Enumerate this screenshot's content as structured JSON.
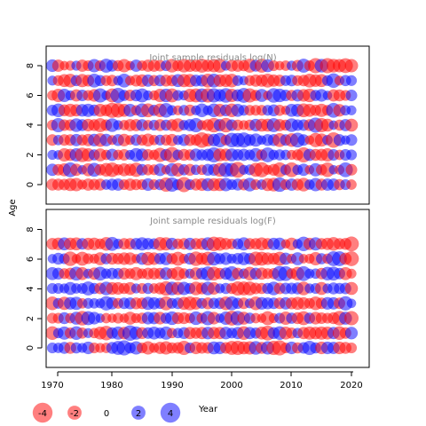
{
  "chart_data": [
    {
      "type": "scatter",
      "title": "Joint sample residuals log(N)",
      "xlabel": "Year",
      "ylabel": "Age",
      "xlim": [
        1970,
        2021
      ],
      "ylim": [
        -1,
        9
      ],
      "x_ticks": [
        1970,
        1980,
        1990,
        2000,
        2010,
        2020
      ],
      "y_ticks": [
        0,
        2,
        4,
        6,
        8
      ],
      "years": [
        1970,
        2020
      ],
      "ages": [
        0,
        8
      ],
      "grid": false,
      "colors": {
        "positive": "#0000ff",
        "negative": "#ff0000"
      },
      "rows": [
        [
          -1.6,
          -1.6,
          -1.5,
          -1.9,
          -2.0,
          -1.1,
          -1.7,
          -1.5,
          -1.6,
          1.2,
          1.6,
          1.7,
          -1.3,
          -1.7,
          -1.4,
          -1.3,
          1.8,
          -1.3,
          1.4,
          -2.3,
          2.3,
          1.4,
          -2.6,
          1.3,
          -1.6,
          -1.8,
          1.9,
          -1.9,
          -1.9,
          2.0,
          1.3,
          1.6,
          -1.5,
          2.1,
          -1.3,
          1.2,
          -1.9,
          -2.1,
          2.4,
          -1.3,
          1.7,
          -1.6,
          -2.1,
          1.2,
          2.0,
          -1.6,
          1.7,
          1.7,
          -1.4,
          1.3,
          -1.2
        ],
        [
          1.7,
          -1.5,
          -1.9,
          2.5,
          -1.7,
          1.0,
          -1.9,
          2.2,
          -1.5,
          -2.1,
          -2.4,
          -1.4,
          -1.9,
          -1.7,
          -2.3,
          1.5,
          -1.4,
          -1.3,
          1.8,
          -1.0,
          2.0,
          -2.1,
          1.4,
          -1.6,
          1.2,
          -1.2,
          1.6,
          1.6,
          -2.2,
          2.4,
          2.2,
          -2.8,
          1.1,
          1.3,
          -2.2,
          -2.6,
          -1.1,
          -1.6,
          -2.5,
          1.3,
          -2.5,
          1.2,
          1.7,
          -1.0,
          2.0,
          -1.4,
          -2.4,
          1.0,
          -1.1,
          2.5,
          -1.5
        ],
        [
          1.1,
          1.0,
          -2.0,
          -1.7,
          2.0,
          -2.4,
          -2.0,
          1.4,
          -1.9,
          -1.2,
          1.7,
          -1.2,
          -1.5,
          1.1,
          2.1,
          1.8,
          -1.5,
          -1.2,
          -2.3,
          1.6,
          -2.8,
          1.3,
          -1.6,
          -1.4,
          1.8,
          1.4,
          1.7,
          2.6,
          -1.9,
          -1.8,
          1.9,
          1.5,
          1.7,
          1.3,
          2.1,
          -1.4,
          2.5,
          1.2,
          1.4,
          1.2,
          -1.1,
          -1.4,
          -2.6,
          1.7,
          -1.6,
          -1.7,
          -2.0,
          1.5,
          -1.2,
          1.5,
          1.3
        ],
        [
          -1.5,
          1.2,
          -1.5,
          -1.5,
          1.7,
          -1.4,
          -1.7,
          1.8,
          -2.1,
          1.8,
          -1.1,
          1.6,
          -1.8,
          -1.1,
          1.5,
          -1.4,
          -1.9,
          -1.2,
          1.3,
          -1.4,
          -1.7,
          1.1,
          1.6,
          -1.6,
          -1.5,
          -2.7,
          -1.9,
          1.8,
          2.4,
          -1.3,
          2.4,
          2.3,
          2.6,
          1.6,
          2.0,
          1.0,
          1.6,
          1.6,
          -2.2,
          1.5,
          -2.1,
          2.5,
          1.5,
          -1.0,
          -2.3,
          -2.0,
          1.2,
          -2.7,
          1.6,
          1.0,
          1.5
        ],
        [
          -1.3,
          2.3,
          -1.5,
          -1.5,
          2.1,
          1.6,
          -1.8,
          -1.6,
          -2.2,
          -1.5,
          2.1,
          1.1,
          -1.2,
          -1.7,
          -1.7,
          1.6,
          -1.2,
          1.3,
          -1.6,
          1.4,
          -1.6,
          -2.1,
          1.2,
          1.7,
          2.3,
          -1.1,
          -1.6,
          -2.4,
          1.7,
          -2.4,
          1.5,
          -1.4,
          -1.1,
          -1.4,
          1.8,
          -1.9,
          -1.9,
          2.2,
          -1.7,
          -1.4,
          2.1,
          1.5,
          1.5,
          -1.6,
          2.6,
          -2.3,
          -1.9,
          1.0,
          -1.4,
          1.7,
          -1.9
        ],
        [
          1.4,
          2.1,
          -1.6,
          -2.0,
          -1.7,
          1.8,
          2.0,
          1.5,
          -1.9,
          -1.6,
          -2.6,
          -2.4,
          -1.9,
          1.9,
          -1.2,
          2.2,
          -2.2,
          1.4,
          -2.1,
          2.4,
          1.2,
          -1.1,
          1.3,
          -1.5,
          1.1,
          2.1,
          1.1,
          2.1,
          -1.9,
          1.6,
          -2.1,
          1.9,
          1.3,
          -1.3,
          -1.3,
          -1.3,
          1.3,
          1.6,
          -1.4,
          -1.0,
          1.9,
          1.9,
          -2.2,
          -1.9,
          -1.4,
          -2.0,
          -1.3,
          2.5,
          -1.8,
          1.2,
          1.1
        ],
        [
          -1.2,
          -2.0,
          2.0,
          1.1,
          -1.7,
          1.5,
          -1.3,
          -1.8,
          2.3,
          1.0,
          -2.2,
          2.6,
          1.4,
          -1.5,
          1.6,
          2.2,
          1.1,
          -1.1,
          -2.0,
          2.1,
          -2.2,
          1.3,
          1.1,
          -2.0,
          -2.2,
          2.2,
          -2.3,
          2.3,
          1.8,
          2.4,
          -2.0,
          1.7,
          2.5,
          -2.3,
          -1.4,
          1.9,
          -1.0,
          2.4,
          2.1,
          1.5,
          -1.4,
          1.7,
          -1.8,
          -2.1,
          1.4,
          1.8,
          1.0,
          -1.7,
          -1.6,
          -1.3,
          1.5
        ],
        [
          1.1,
          -1.3,
          -1.9,
          -2.1,
          1.4,
          -2.0,
          -1.6,
          2.2,
          1.4,
          -1.3,
          -1.5,
          1.1,
          2.2,
          -1.1,
          -1.6,
          -1.8,
          1.7,
          -1.4,
          1.5,
          -1.6,
          -1.5,
          1.9,
          -2.0,
          -2.0,
          1.6,
          1.6,
          -2.2,
          2.2,
          -1.8,
          -1.9,
          -2.1,
          1.3,
          1.0,
          -1.3,
          -1.7,
          -1.7,
          -2.2,
          -1.7,
          -1.6,
          1.3,
          1.5,
          -1.3,
          -1.5,
          -2.2,
          -1.8,
          -1.9,
          1.3,
          2.4,
          -1.1,
          1.4,
          1.3
        ],
        [
          1.8,
          -1.7,
          -1.0,
          -1.1,
          1.1,
          -1.7,
          -1.3,
          2.0,
          -1.3,
          2.2,
          1.6,
          -1.4,
          -2.0,
          -1.0,
          1.7,
          -1.2,
          -1.7,
          -1.7,
          -1.5,
          1.3,
          -2.1,
          -1.4,
          -2.1,
          -1.8,
          -1.7,
          -2.2,
          -1.7,
          -2.0,
          -2.2,
          1.1,
          -1.6,
          -1.7,
          -1.4,
          -2.2,
          1.6,
          -2.2,
          1.9,
          -1.3,
          -1.0,
          -1.2,
          1.1,
          -1.5,
          2.2,
          -1.3,
          -2.6,
          2.1,
          -2.6,
          -2.1,
          -2.0,
          -2.5,
          -2.0
        ]
      ]
    },
    {
      "type": "scatter",
      "title": "Joint sample residuals log(F)",
      "xlabel": "Year",
      "ylabel": "Age",
      "xlim": [
        1970,
        2021
      ],
      "ylim": [
        -1,
        9
      ],
      "x_ticks": [
        1970,
        1980,
        1990,
        2000,
        2010,
        2020
      ],
      "y_ticks": [
        0,
        2,
        4,
        6,
        8
      ],
      "years": [
        1970,
        2020
      ],
      "ages": [
        0,
        7
      ],
      "grid": false,
      "colors": {
        "positive": "#0000ff",
        "negative": "#ff0000"
      },
      "rows": [
        [
          1.3,
          1.2,
          1.6,
          -1.6,
          1.4,
          1.1,
          1.8,
          -1.3,
          -1.1,
          -1.2,
          1.6,
          2.2,
          2.6,
          1.4,
          2.0,
          -1.3,
          -2.0,
          -1.1,
          -1.7,
          -2.0,
          -1.4,
          -1.5,
          -2.3,
          1.3,
          -1.8,
          -1.5,
          -1.5,
          1.9,
          1.8,
          -1.5,
          -2.2,
          -2.3,
          -1.9,
          -2.0,
          2.1,
          -1.6,
          2.0,
          -2.3,
          -2.6,
          -1.3,
          1.8,
          -1.4,
          1.5,
          2.3,
          1.4,
          -1.8,
          1.8,
          1.7,
          -1.8,
          -1.6,
          -1.3
        ],
        [
          -2.1,
          1.2,
          2.0,
          -1.4,
          2.1,
          -1.4,
          1.1,
          -1.2,
          -1.9,
          -2.4,
          1.5,
          2.0,
          -1.8,
          2.7,
          2.0,
          -1.6,
          1.5,
          1.9,
          1.4,
          2.0,
          -1.2,
          1.2,
          1.6,
          -1.7,
          -1.5,
          -1.7,
          1.8,
          -1.7,
          -1.7,
          1.8,
          1.3,
          1.7,
          -2.1,
          1.7,
          1.4,
          -1.9,
          -2.5,
          1.6,
          2.1,
          -1.9,
          -1.4,
          1.2,
          -1.7,
          -2.0,
          -1.8,
          -2.0,
          -1.9,
          1.7,
          -2.1,
          -1.5,
          1.8
        ],
        [
          -1.3,
          -1.3,
          1.6,
          -1.2,
          1.9,
          -2.4,
          2.2,
          1.8,
          1.0,
          -1.2,
          -1.0,
          -1.3,
          -1.0,
          -1.9,
          -1.1,
          -1.4,
          1.8,
          1.7,
          -1.8,
          1.4,
          2.1,
          -1.6,
          -1.6,
          -1.2,
          2.1,
          -1.3,
          2.3,
          -1.8,
          1.0,
          2.0,
          -2.5,
          2.4,
          -1.9,
          1.4,
          -1.2,
          -1.0,
          -2.2,
          -1.1,
          1.3,
          -2.0,
          1.4,
          -1.6,
          -2.2,
          1.4,
          -1.8,
          -1.5,
          -1.3,
          -1.6,
          -2.4,
          1.9,
          -2.3
        ],
        [
          -2.1,
          1.3,
          -2.0,
          1.8,
          2.0,
          -1.2,
          1.3,
          1.2,
          1.1,
          2.3,
          1.7,
          -1.3,
          1.5,
          1.6,
          -1.6,
          -1.5,
          2.0,
          1.7,
          1.4,
          -2.2,
          1.3,
          1.5,
          -1.9,
          -2.2,
          -1.8,
          1.3,
          -1.6,
          1.4,
          1.5,
          -2.1,
          2.2,
          1.4,
          -1.5,
          1.1,
          -2.1,
          1.8,
          1.6,
          1.5,
          -1.5,
          1.7,
          -1.6,
          -1.9,
          -1.7,
          -1.3,
          -2.1,
          -1.5,
          1.8,
          1.7,
          -1.5,
          2.3,
          1.0
        ],
        [
          1.3,
          1.3,
          1.1,
          1.9,
          1.2,
          1.3,
          2.2,
          1.4,
          -1.5,
          2.1,
          -1.8,
          -1.8,
          -1.4,
          -1.8,
          1.1,
          -1.3,
          1.4,
          -1.2,
          -1.6,
          -2.4,
          2.1,
          -2.0,
          2.0,
          1.4,
          -2.1,
          -1.6,
          2.1,
          -1.8,
          1.1,
          1.4,
          -1.4,
          -2.3,
          -2.2,
          -2.2,
          -1.5,
          -1.4,
          1.4,
          2.1,
          -1.5,
          1.5,
          1.5,
          1.6,
          -2.1,
          1.1,
          1.3,
          -1.9,
          1.1,
          1.6,
          1.4,
          1.5,
          -1.9
        ],
        [
          1.9,
          1.6,
          -1.3,
          -1.6,
          2.2,
          -1.9,
          1.1,
          -1.7,
          2.2,
          1.2,
          1.5,
          1.4,
          -1.6,
          -1.3,
          -2.0,
          -1.2,
          -1.6,
          -1.6,
          -1.5,
          1.8,
          -1.4,
          -2.2,
          -1.3,
          1.1,
          -1.8,
          1.6,
          2.3,
          -2.2,
          -1.5,
          1.7,
          2.5,
          -1.6,
          1.2,
          -2.1,
          1.6,
          -1.7,
          -1.3,
          -1.4,
          2.6,
          2.5,
          -1.3,
          -2.1,
          2.5,
          1.1,
          1.2,
          -1.5,
          2.1,
          2.2,
          1.5,
          -1.9,
          -1.1
        ],
        [
          1.0,
          1.6,
          1.3,
          -2.4,
          -1.0,
          -2.2,
          -1.3,
          -1.1,
          -1.9,
          1.4,
          -1.6,
          -1.5,
          -1.8,
          -1.8,
          -1.0,
          1.7,
          -2.1,
          -1.8,
          1.5,
          1.9,
          -1.4,
          -2.2,
          -1.1,
          1.6,
          -2.4,
          -1.7,
          -2.2,
          2.1,
          1.4,
          1.8,
          1.1,
          1.5,
          1.9,
          1.5,
          -2.3,
          -2.2,
          -1.8,
          -1.6,
          -2.2,
          1.7,
          -1.1,
          1.9,
          -1.0,
          -1.1,
          -2.0,
          1.4,
          -1.2,
          2.5,
          2.5,
          -1.7,
          -2.5
        ],
        [
          -1.6,
          -1.8,
          1.9,
          -1.8,
          -1.9,
          1.5,
          -1.7,
          -1.8,
          -1.3,
          -2.1,
          2.2,
          1.2,
          -1.5,
          -1.5,
          1.6,
          2.0,
          1.6,
          1.4,
          -2.1,
          -2.0,
          1.7,
          -1.3,
          -1.5,
          1.7,
          -1.5,
          -1.6,
          2.0,
          -2.4,
          -2.1,
          -1.6,
          -1.3,
          1.4,
          2.0,
          -1.5,
          -1.5,
          -1.9,
          -1.5,
          1.7,
          1.8,
          -1.0,
          -1.8,
          1.1,
          2.4,
          -1.7,
          2.0,
          -1.5,
          -1.7,
          -2.1,
          -1.5,
          -1.6,
          -2.5
        ]
      ]
    }
  ],
  "legend": {
    "items": [
      {
        "label": "-4",
        "value": -4
      },
      {
        "label": "-2",
        "value": -2
      },
      {
        "label": "0",
        "value": 0
      },
      {
        "label": "2",
        "value": 2
      },
      {
        "label": "4",
        "value": 4
      }
    ],
    "title": "Year"
  },
  "axis": {
    "ylabel": "Age"
  }
}
